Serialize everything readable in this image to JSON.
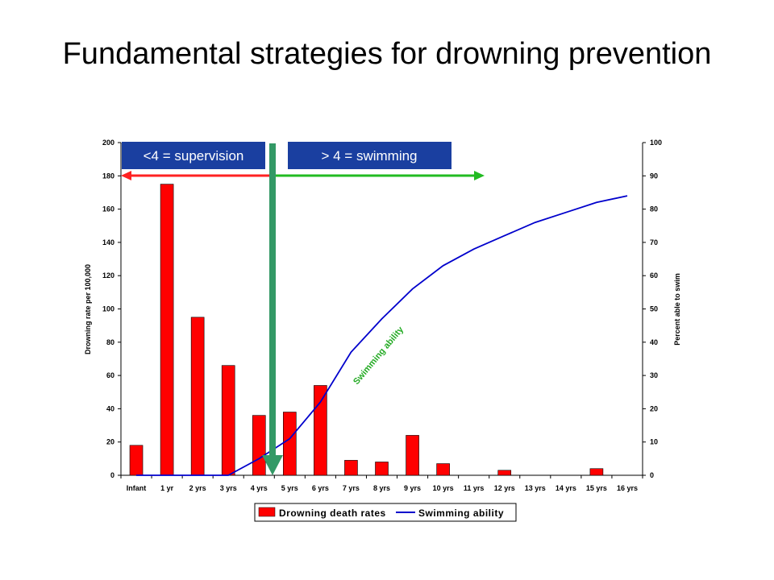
{
  "slide": {
    "title": "Fundamental strategies for drowning prevention"
  },
  "annotations": {
    "supervision_label": "<4 = supervision",
    "swimming_label": "> 4 = swimming",
    "curve_label": "Swimming ability"
  },
  "colors": {
    "bars": "#ff0000",
    "line": "#0000cc",
    "label_box": "#1a3fa0",
    "red_arrow": "#ff2222",
    "green_arrow": "#22bb22",
    "vertical_arrow": "#339966",
    "curve_label": "#22aa22"
  },
  "chart_data": {
    "type": "bar",
    "categories": [
      "Infant",
      "1 yr",
      "2 yrs",
      "3 yrs",
      "4 yrs",
      "5 yrs",
      "6 yrs",
      "7 yrs",
      "8 yrs",
      "9 yrs",
      "10 yrs",
      "11 yrs",
      "12 yrs",
      "13 yrs",
      "14 yrs",
      "15 yrs",
      "16 yrs"
    ],
    "series": [
      {
        "name": "Drowning death rates",
        "type": "bar",
        "axis": "left",
        "values": [
          18,
          175,
          95,
          66,
          36,
          38,
          54,
          9,
          8,
          24,
          7,
          0,
          3,
          0,
          0,
          4,
          0
        ]
      },
      {
        "name": "Swimming ability",
        "type": "line",
        "axis": "right",
        "values": [
          0,
          0,
          0,
          0,
          5,
          11,
          22,
          37,
          47,
          56,
          63,
          68,
          72,
          76,
          79,
          82,
          84
        ]
      }
    ],
    "ylabel": "Drowning rate per 100,000",
    "y2label": "Percent able to swim",
    "ylim": [
      0,
      200
    ],
    "y2lim": [
      0,
      100
    ],
    "yticks": [
      "0",
      "20",
      "40",
      "60",
      "80",
      "100",
      "120",
      "140",
      "160",
      "180",
      "200"
    ],
    "y2ticks": [
      "0",
      "10",
      "20",
      "30",
      "40",
      "50",
      "60",
      "70",
      "80",
      "90",
      "100"
    ],
    "legend": {
      "position": "bottom",
      "entries": [
        "Drowning death rates",
        "Swimming ability"
      ]
    },
    "grid": false
  }
}
